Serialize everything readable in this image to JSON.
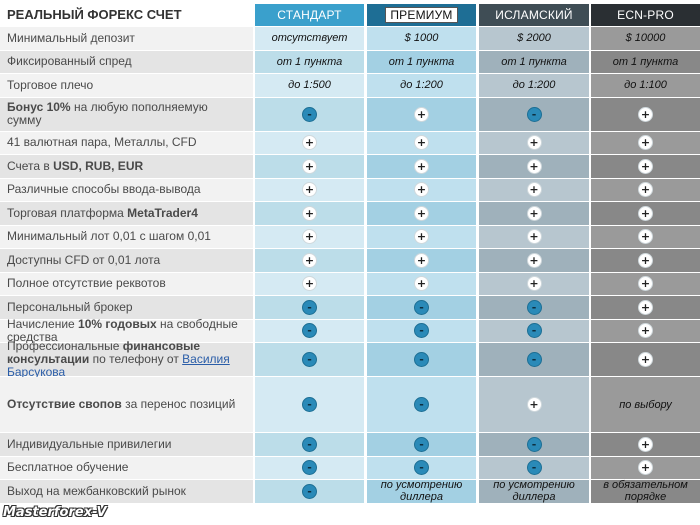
{
  "table": {
    "title": "РЕАЛЬНЫЙ ФОРЕКС СЧЕТ",
    "columns": [
      "СТАНДАРТ",
      "ПРЕМИУМ",
      "ИСЛАМСКИЙ",
      "ECN-PRO"
    ],
    "rows": [
      {
        "label": "Минимальный депозит",
        "values": [
          "отсутствует",
          "$ 1000",
          "$ 2000",
          "$ 10000"
        ]
      },
      {
        "label": "Фиксированный спред",
        "values": [
          "от 1 пункта",
          "от 1 пункта",
          "от 1 пункта",
          "от 1 пункта"
        ]
      },
      {
        "label": "Торговое плечо",
        "values": [
          "до 1:500",
          "до 1:200",
          "до 1:200",
          "до 1:100"
        ]
      },
      {
        "label_bold": "Бонус 10%",
        "label_rest": " на любую пополняемую сумму",
        "values": [
          "-",
          "+",
          "-",
          "+"
        ]
      },
      {
        "label": "41 валютная пара, Металлы, CFD",
        "values": [
          "+",
          "+",
          "+",
          "+"
        ]
      },
      {
        "label_pre": "Счета в ",
        "label_bold": "USD, RUB, EUR",
        "values": [
          "+",
          "+",
          "+",
          "+"
        ]
      },
      {
        "label": "Различные способы ввода-вывода",
        "values": [
          "+",
          "+",
          "+",
          "+"
        ]
      },
      {
        "label_pre": "Торговая платформа ",
        "label_bold": "MetaTrader4",
        "values": [
          "+",
          "+",
          "+",
          "+"
        ]
      },
      {
        "label": "Минимальный лот 0,01 с шагом 0,01",
        "values": [
          "+",
          "+",
          "+",
          "+"
        ]
      },
      {
        "label": "Доступны CFD от 0,01 лота",
        "values": [
          "+",
          "+",
          "+",
          "+"
        ]
      },
      {
        "label": "Полное отсутствие реквотов",
        "values": [
          "+",
          "+",
          "+",
          "+"
        ]
      },
      {
        "label": "Персональный брокер",
        "values": [
          "-",
          "-",
          "-",
          "+"
        ]
      },
      {
        "label_pre": "Начисление ",
        "label_bold": "10% годовых",
        "label_rest": " на свободные средства",
        "values": [
          "-",
          "-",
          "-",
          "+"
        ]
      },
      {
        "label_pre": "Профессиональные ",
        "label_bold": "финансовые консультации",
        "label_rest": " по телефону от ",
        "label_link": "Василия Барсукова",
        "values": [
          "-",
          "-",
          "-",
          "+"
        ]
      },
      {
        "label_bold": "Отсутствие свопов",
        "label_rest": " за перенос позиций",
        "values": [
          "-",
          "-",
          "+",
          "по выбору"
        ]
      },
      {
        "label": "Индивидуальные привилегии",
        "values": [
          "-",
          "-",
          "-",
          "+"
        ]
      },
      {
        "label": "Бесплатное обучение",
        "values": [
          "-",
          "-",
          "-",
          "+"
        ]
      },
      {
        "label": "Выход на межбанковский рынок",
        "values": [
          "-",
          "по усмотрению диллера",
          "по усмотрению диллера",
          "в обязательном порядке"
        ]
      }
    ]
  },
  "watermark": "Masterforex-V",
  "icons": {
    "plus": "plus-circle-icon",
    "minus": "minus-circle-icon"
  },
  "colors": {
    "standard": "#3aa0cc",
    "premium": "#1e6e95",
    "islamic": "#3f4d55",
    "ecn": "#2a2f33"
  }
}
